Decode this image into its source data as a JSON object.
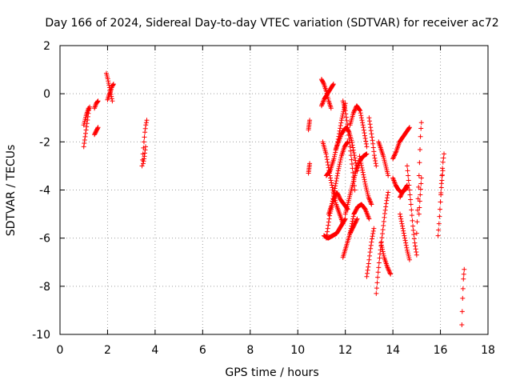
{
  "chart_data": {
    "type": "scatter",
    "title": "Day 166 of 2024, Sidereal Day-to-day VTEC variation (SDTVAR) for receiver ac72",
    "xlabel": "GPS time / hours",
    "ylabel": "SDTVAR / TECUs",
    "xlim": [
      0,
      18
    ],
    "ylim": [
      -10,
      2
    ],
    "x_ticks": [
      "0",
      "2",
      "4",
      "6",
      "8",
      "10",
      "12",
      "14",
      "16",
      "18"
    ],
    "y_ticks": [
      "-10",
      "-8",
      "-6",
      "-4",
      "-2",
      "0",
      "2"
    ],
    "grid": true,
    "marker": "+",
    "series": [
      {
        "name": "ac72",
        "color": "#ff0000",
        "arcs": [
          {
            "t0": 1.0,
            "t1": 1.25,
            "v": [
              -2.2,
              -1.9,
              -1.6,
              -1.3,
              -1.0,
              -0.7,
              -0.55
            ]
          },
          {
            "t0": 1.0,
            "t1": 1.2,
            "v": [
              -1.3,
              -1.1,
              -0.9,
              -0.75,
              -0.6
            ]
          },
          {
            "t0": 1.45,
            "t1": 1.6,
            "v": [
              -0.6,
              -0.5,
              -0.4,
              -0.35,
              -0.3
            ]
          },
          {
            "t0": 1.45,
            "t1": 1.6,
            "v": [
              -1.7,
              -1.6,
              -1.5,
              -1.4
            ]
          },
          {
            "t0": 1.95,
            "t1": 2.2,
            "v": [
              0.85,
              0.6,
              0.3,
              0.0,
              -0.3
            ]
          },
          {
            "t0": 2.0,
            "t1": 2.25,
            "v": [
              -0.25,
              -0.05,
              0.1,
              0.3,
              0.4
            ]
          },
          {
            "t0": 3.45,
            "t1": 3.65,
            "v": [
              -3.0,
              -2.5,
              -2.0,
              -1.6,
              -1.3,
              -1.1
            ]
          },
          {
            "t0": 3.5,
            "t1": 3.6,
            "v": [
              -2.9,
              -2.6,
              -2.2
            ]
          },
          {
            "t0": 10.45,
            "t1": 10.5,
            "v": [
              -3.3,
              -3.1,
              -2.9
            ]
          },
          {
            "t0": 10.45,
            "t1": 10.5,
            "v": [
              -1.5,
              -1.3,
              -1.1
            ]
          },
          {
            "t0": 11.0,
            "t1": 11.4,
            "v": [
              0.6,
              0.4,
              0.1,
              -0.3,
              -0.6
            ]
          },
          {
            "t0": 11.0,
            "t1": 11.5,
            "v": [
              -0.5,
              -0.2,
              0.0,
              0.2,
              0.4
            ]
          },
          {
            "t0": 11.05,
            "t1": 11.9,
            "v": [
              -2.0,
              -2.5,
              -3.3,
              -4.0,
              -4.6,
              -5.0,
              -5.4
            ]
          },
          {
            "t0": 11.1,
            "t1": 12.0,
            "v": [
              -5.9,
              -6.0,
              -5.9,
              -5.8,
              -5.5,
              -5.2
            ]
          },
          {
            "t0": 11.2,
            "t1": 12.0,
            "v": [
              -3.4,
              -3.2,
              -2.7,
              -2.0,
              -1.1,
              -0.4
            ]
          },
          {
            "t0": 11.2,
            "t1": 12.1,
            "v": [
              -6.0,
              -5.0,
              -4.4,
              -4.1,
              -4.4,
              -4.6,
              -4.8
            ]
          },
          {
            "t0": 11.3,
            "t1": 12.1,
            "v": [
              -5.0,
              -4.6,
              -3.9,
              -3.2,
              -2.6,
              -2.2,
              -2.0
            ]
          },
          {
            "t0": 11.6,
            "t1": 12.5,
            "v": [
              -2.3,
              -2.0,
              -1.7,
              -1.5,
              -1.4,
              -1.6,
              -2.0,
              -2.6,
              -3.2
            ]
          },
          {
            "t0": 11.9,
            "t1": 12.4,
            "v": [
              -0.3,
              -0.7,
              -1.4,
              -2.2,
              -3.1,
              -4.0
            ]
          },
          {
            "t0": 11.9,
            "t1": 12.5,
            "v": [
              -6.8,
              -6.3,
              -5.8,
              -5.5,
              -5.2
            ]
          },
          {
            "t0": 12.0,
            "t1": 12.9,
            "v": [
              -5.0,
              -4.4,
              -3.8,
              -3.2,
              -2.8,
              -2.6,
              -2.5
            ]
          },
          {
            "t0": 12.2,
            "t1": 12.9,
            "v": [
              -1.3,
              -0.8,
              -0.5,
              -0.7,
              -1.4,
              -2.2
            ]
          },
          {
            "t0": 12.2,
            "t1": 13.0,
            "v": [
              -5.8,
              -5.0,
              -4.7,
              -4.6,
              -4.8,
              -5.2
            ]
          },
          {
            "t0": 12.6,
            "t1": 13.1,
            "v": [
              -2.6,
              -3.2,
              -3.8,
              -4.3,
              -4.6
            ]
          },
          {
            "t0": 12.9,
            "t1": 13.2,
            "v": [
              -7.6,
              -7.1,
              -6.5,
              -6.0,
              -5.6
            ]
          },
          {
            "t0": 13.0,
            "t1": 13.3,
            "v": [
              -1.0,
              -1.5,
              -2.0,
              -2.6,
              -3.0
            ]
          },
          {
            "t0": 13.3,
            "t1": 13.8,
            "v": [
              -8.3,
              -7.5,
              -6.8,
              -6.2,
              -5.6,
              -5.0,
              -4.5,
              -4.1
            ]
          },
          {
            "t0": 13.4,
            "t1": 13.8,
            "v": [
              -2.0,
              -2.3,
              -2.6,
              -3.0,
              -3.4
            ]
          },
          {
            "t0": 13.5,
            "t1": 13.9,
            "v": [
              -6.2,
              -6.8,
              -7.2,
              -7.5
            ]
          },
          {
            "t0": 14.0,
            "t1": 14.6,
            "v": [
              -3.5,
              -3.8,
              -4.0,
              -4.1,
              -4.0,
              -3.8
            ]
          },
          {
            "t0": 14.0,
            "t1": 14.7,
            "v": [
              -2.7,
              -2.4,
              -2.0,
              -1.8,
              -1.6,
              -1.4
            ]
          },
          {
            "t0": 14.3,
            "t1": 14.7,
            "v": [
              -5.0,
              -5.5,
              -6.0,
              -6.5,
              -6.9
            ]
          },
          {
            "t0": 14.3,
            "t1": 14.6,
            "v": [
              -4.3,
              -4.1,
              -4.0,
              -3.9
            ]
          },
          {
            "t0": 14.6,
            "t1": 15.0,
            "v": [
              -3.0,
              -3.8,
              -4.6,
              -5.5,
              -6.2,
              -6.7
            ]
          },
          {
            "t0": 15.0,
            "t1": 15.2,
            "v": [
              -5.8,
              -5.0,
              -4.2,
              -3.4,
              -2.5,
              -1.6,
              -1.2
            ]
          },
          {
            "t0": 15.1,
            "t1": 15.2,
            "v": [
              -5.0,
              -4.2,
              -3.5
            ]
          },
          {
            "t0": 15.9,
            "t1": 16.1,
            "v": [
              -5.9,
              -5.5,
              -5.0,
              -4.5,
              -4.0,
              -3.5,
              -3.2
            ]
          },
          {
            "t0": 16.0,
            "t1": 16.15,
            "v": [
              -4.5,
              -3.6,
              -2.9,
              -2.5
            ]
          },
          {
            "t0": 16.9,
            "t1": 17.0,
            "v": [
              -9.6,
              -8.5,
              -7.7,
              -7.3
            ]
          }
        ]
      }
    ]
  }
}
